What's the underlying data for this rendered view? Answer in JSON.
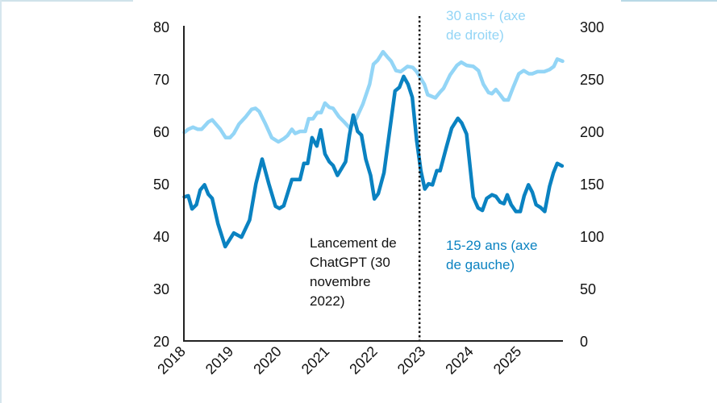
{
  "chart_data": {
    "type": "line",
    "title": "",
    "xlabel": "",
    "x_ticks": [
      "2018",
      "2019",
      "2020",
      "2021",
      "2022",
      "2023",
      "2024",
      "2025"
    ],
    "xlim": [
      2018,
      2025.95
    ],
    "y_left": {
      "label": "",
      "lim": [
        20,
        80
      ],
      "ticks": [
        "20",
        "30",
        "40",
        "50",
        "60",
        "70",
        "80"
      ]
    },
    "y_right": {
      "label": "",
      "lim": [
        0,
        300
      ],
      "ticks": [
        "0",
        "50",
        "100",
        "150",
        "200",
        "250",
        "300"
      ]
    },
    "grid": false,
    "colors": {
      "young": "#0a82c1",
      "old": "#93d5f6",
      "axis": "#222222"
    },
    "event": {
      "x": 2022.91,
      "label_lines": [
        "Lancement de",
        "ChatGPT (30",
        "novembre",
        "2022)"
      ]
    },
    "series": [
      {
        "name": "15-29 ans",
        "label_lines": [
          "15-29 ans (axe",
          "de gauche)"
        ],
        "axis": "left",
        "x": [
          2018.01,
          2018.09,
          2018.17,
          2018.26,
          2018.34,
          2018.43,
          2018.51,
          2018.59,
          2018.71,
          2018.86,
          2019.04,
          2019.2,
          2019.37,
          2019.5,
          2019.63,
          2019.77,
          2019.91,
          2019.99,
          2020.08,
          2020.25,
          2020.42,
          2020.5,
          2020.58,
          2020.67,
          2020.77,
          2020.85,
          2020.94,
          2021.03,
          2021.11,
          2021.2,
          2021.37,
          2021.45,
          2021.53,
          2021.62,
          2021.7,
          2021.79,
          2021.89,
          2021.97,
          2022.05,
          2022.17,
          2022.4,
          2022.49,
          2022.58,
          2022.67,
          2022.76,
          2022.85,
          2022.94,
          2023.02,
          2023.1,
          2023.18,
          2023.27,
          2023.34,
          2023.47,
          2023.58,
          2023.71,
          2023.79,
          2023.89,
          2024.03,
          2024.13,
          2024.22,
          2024.31,
          2024.42,
          2024.5,
          2024.59,
          2024.67,
          2024.74,
          2024.82,
          2024.92,
          2025.01,
          2025.09,
          2025.18,
          2025.26,
          2025.34,
          2025.43,
          2025.52,
          2025.62,
          2025.7,
          2025.78,
          2025.88
        ],
        "values": [
          47.5,
          47.7,
          45.2,
          46.0,
          48.8,
          49.8,
          48.0,
          47.2,
          42.4,
          38.0,
          40.6,
          39.8,
          43.1,
          50.0,
          54.7,
          50.0,
          45.7,
          45.3,
          45.8,
          50.8,
          50.8,
          53.9,
          53.9,
          58.8,
          57.2,
          60.3,
          55.7,
          54.2,
          53.5,
          51.6,
          54.2,
          59.3,
          63.1,
          60.0,
          59.3,
          54.7,
          51.6,
          47.1,
          48.1,
          52.1,
          67.7,
          68.4,
          70.5,
          69.0,
          66.5,
          58.3,
          52.4,
          49.0,
          50.0,
          49.8,
          52.5,
          52.5,
          57.0,
          60.6,
          62.5,
          61.6,
          59.5,
          47.5,
          45.4,
          44.9,
          47.2,
          47.9,
          47.6,
          46.5,
          46.2,
          47.9,
          46.0,
          44.7,
          44.7,
          47.7,
          49.8,
          48.4,
          46.0,
          45.5,
          44.7,
          49.5,
          52.1,
          53.9,
          53.4
        ]
      },
      {
        "name": "30 ans+",
        "label_lines": [
          "30 ans+ (axe",
          "de droite)"
        ],
        "axis": "right",
        "x": [
          2018.01,
          2018.09,
          2018.19,
          2018.29,
          2018.37,
          2018.51,
          2018.59,
          2018.76,
          2018.87,
          2018.96,
          2019.04,
          2019.15,
          2019.29,
          2019.41,
          2019.49,
          2019.57,
          2019.69,
          2019.83,
          2019.97,
          2020.08,
          2020.16,
          2020.25,
          2020.32,
          2020.42,
          2020.53,
          2020.6,
          2020.69,
          2020.78,
          2020.86,
          2020.94,
          2021.03,
          2021.11,
          2021.23,
          2021.34,
          2021.46,
          2021.59,
          2021.73,
          2021.87,
          2021.95,
          2022.04,
          2022.15,
          2022.24,
          2022.32,
          2022.42,
          2022.52,
          2022.66,
          2022.77,
          2022.85,
          2023.01,
          2023.08,
          2023.24,
          2023.33,
          2023.41,
          2023.55,
          2023.69,
          2023.78,
          2023.89,
          2024.03,
          2024.14,
          2024.24,
          2024.35,
          2024.42,
          2024.5,
          2024.59,
          2024.67,
          2024.76,
          2024.87,
          2024.98,
          2025.08,
          2025.19,
          2025.26,
          2025.37,
          2025.51,
          2025.62,
          2025.71,
          2025.78,
          2025.89
        ],
        "values": [
          199,
          202,
          204,
          202,
          202,
          209,
          211,
          202,
          194,
          194,
          198,
          207,
          214,
          221,
          222,
          219,
          208,
          194,
          190,
          193,
          196,
          202,
          198,
          200,
          200,
          212,
          212,
          218,
          218,
          227,
          223,
          222,
          214,
          209,
          203,
          212,
          226,
          245,
          264,
          268,
          276,
          271,
          267,
          258,
          257,
          262,
          261,
          257,
          245,
          235,
          232,
          237,
          241,
          254,
          263,
          266,
          263,
          262,
          258,
          245,
          237,
          236,
          240,
          235,
          230,
          230,
          243,
          255,
          258,
          255,
          255,
          257,
          257,
          259,
          262,
          269,
          267
        ]
      }
    ]
  }
}
